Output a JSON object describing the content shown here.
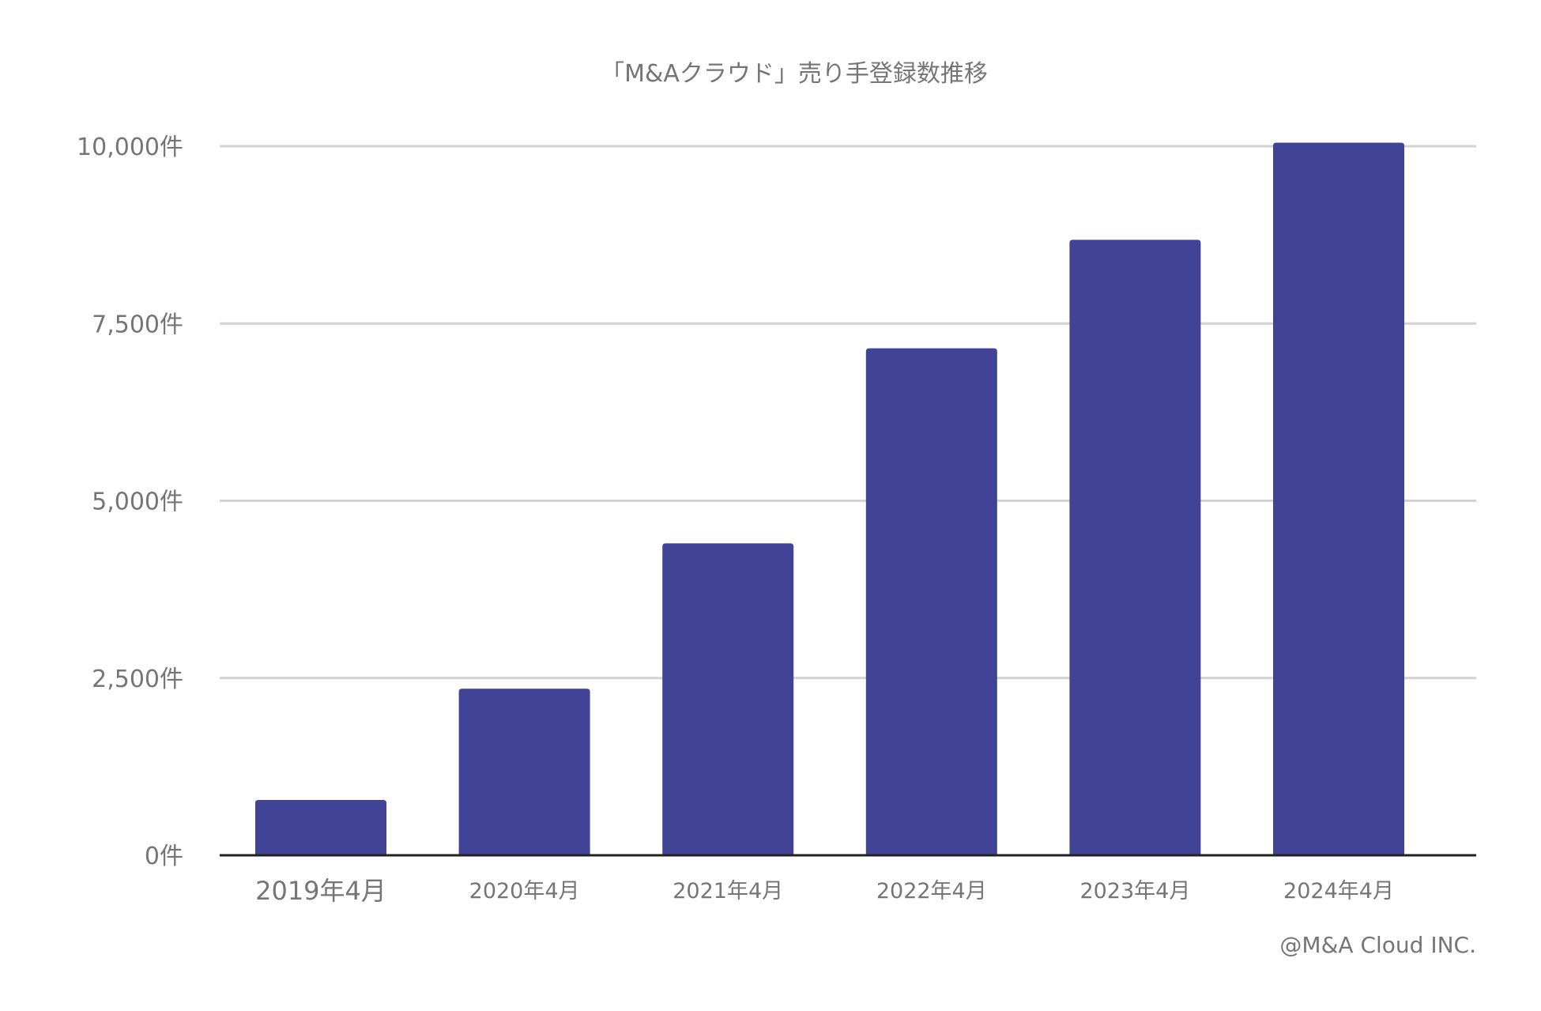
{
  "chart_data": {
    "type": "bar",
    "title": "「M&Aクラウド」売り手登録数推移",
    "xlabel": "",
    "ylabel": "",
    "categories": [
      "2019年4月",
      "2020年4月",
      "2021年4月",
      "2022年4月",
      "2023年4月",
      "2024年4月"
    ],
    "values": [
      780,
      2350,
      4400,
      7150,
      8680,
      10050
    ],
    "ylim": [
      0,
      10000
    ],
    "y_ticks": [
      {
        "value": 0,
        "label": "0件"
      },
      {
        "value": 2500,
        "label": "2,500件"
      },
      {
        "value": 5000,
        "label": "5,000件"
      },
      {
        "value": 7500,
        "label": "7,500件"
      },
      {
        "value": 10000,
        "label": "10,000件"
      }
    ],
    "grid": true,
    "bar_color": "#414496",
    "grid_color": "#d3d3d3",
    "axis_color": "#222222"
  },
  "footer": {
    "credit": "@M&A Cloud INC."
  }
}
